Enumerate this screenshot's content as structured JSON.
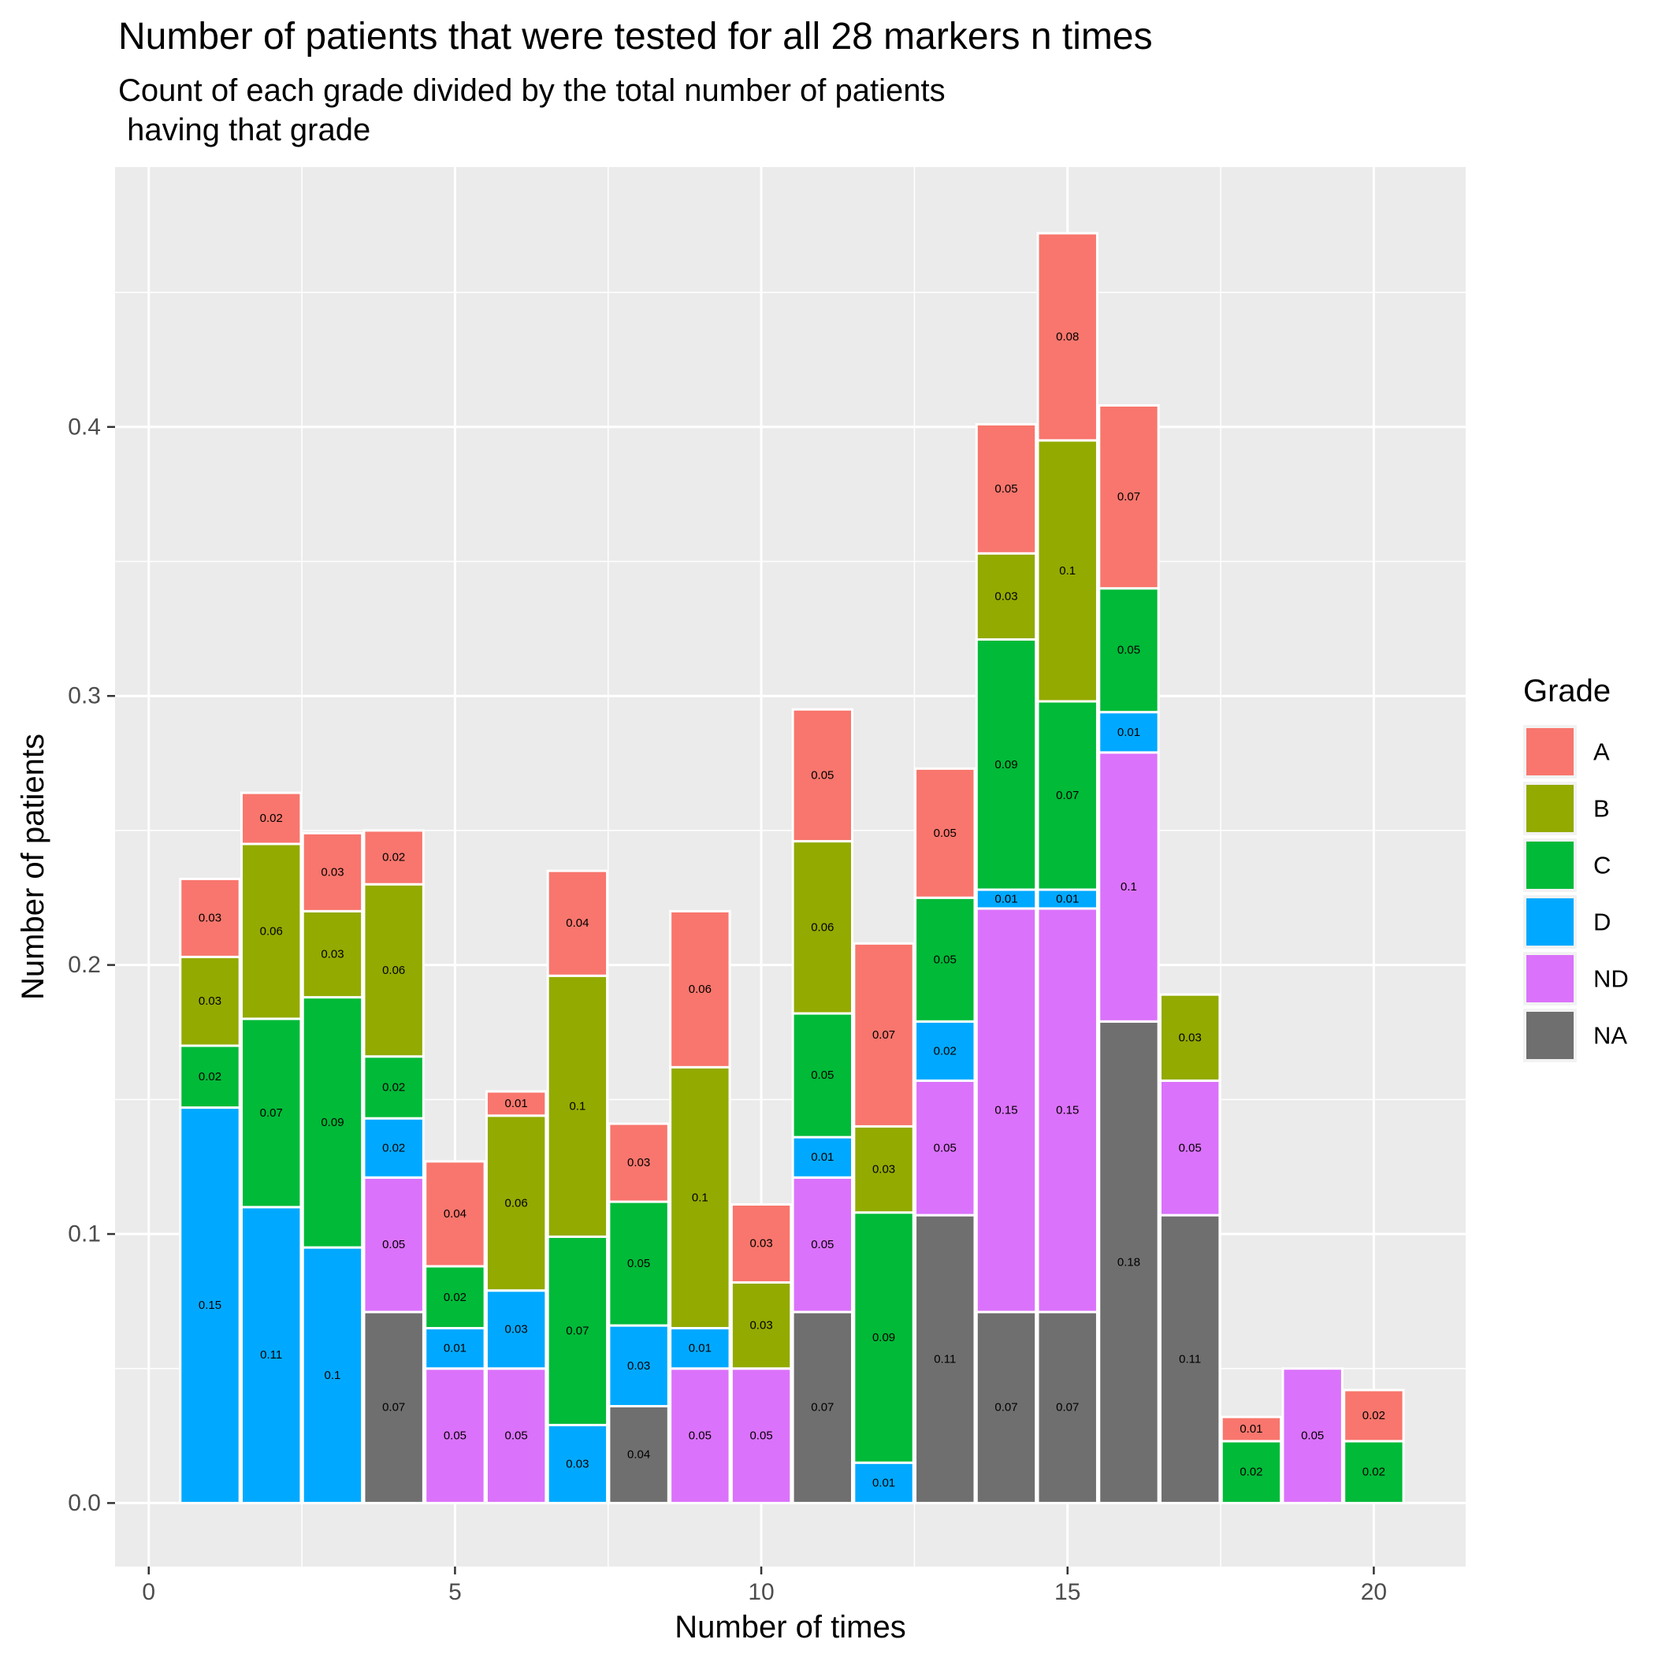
{
  "chart_data": {
    "type": "bar",
    "stacked": true,
    "title": "Number of patients that were tested for all 28 markers n times",
    "subtitle_lines": [
      "Count of each grade divided by the total number of patients",
      " having that grade"
    ],
    "xlabel": "Number of times",
    "ylabel": "Number of patients",
    "xlim": [
      -0.55,
      21.5
    ],
    "ylim": [
      -0.0236,
      0.4966
    ],
    "x_ticks": [
      0,
      5,
      10,
      15,
      20
    ],
    "x_tick_labels": [
      "0",
      "5",
      "10",
      "15",
      "20"
    ],
    "y_ticks": [
      0.0,
      0.1,
      0.2,
      0.3,
      0.4
    ],
    "y_tick_labels": [
      "0.0",
      "0.1",
      "0.2",
      "0.3",
      "0.4"
    ],
    "grid": true,
    "legend_position": "right",
    "legend_title": "Grade",
    "stack_order_bottom_to_top": [
      "NA",
      "ND",
      "D",
      "C",
      "B",
      "A"
    ],
    "series": [
      {
        "name": "A",
        "color": "#F8766D",
        "values": [
          {
            "x": 1,
            "y": 0.029,
            "label": "0.03"
          },
          {
            "x": 2,
            "y": 0.019,
            "label": "0.02"
          },
          {
            "x": 3,
            "y": 0.029,
            "label": "0.03"
          },
          {
            "x": 4,
            "y": 0.02,
            "label": "0.02"
          },
          {
            "x": 5,
            "y": 0.039,
            "label": "0.04"
          },
          {
            "x": 6,
            "y": 0.009,
            "label": "0.01"
          },
          {
            "x": 7,
            "y": 0.039,
            "label": "0.04"
          },
          {
            "x": 8,
            "y": 0.029,
            "label": "0.03"
          },
          {
            "x": 9,
            "y": 0.058,
            "label": "0.06"
          },
          {
            "x": 10,
            "y": 0.029,
            "label": "0.03"
          },
          {
            "x": 11,
            "y": 0.049,
            "label": "0.05"
          },
          {
            "x": 12,
            "y": 0.068,
            "label": "0.07"
          },
          {
            "x": 13,
            "y": 0.048,
            "label": "0.05"
          },
          {
            "x": 14,
            "y": 0.048,
            "label": "0.05"
          },
          {
            "x": 15,
            "y": 0.077,
            "label": "0.08"
          },
          {
            "x": 16,
            "y": 0.068,
            "label": "0.07"
          },
          {
            "x": 18,
            "y": 0.009,
            "label": "0.01"
          },
          {
            "x": 20,
            "y": 0.019,
            "label": "0.02"
          }
        ]
      },
      {
        "name": "B",
        "color": "#93AA00",
        "values": [
          {
            "x": 1,
            "y": 0.033,
            "label": "0.03"
          },
          {
            "x": 2,
            "y": 0.065,
            "label": "0.06"
          },
          {
            "x": 3,
            "y": 0.032,
            "label": "0.03"
          },
          {
            "x": 4,
            "y": 0.064,
            "label": "0.06"
          },
          {
            "x": 6,
            "y": 0.065,
            "label": "0.06"
          },
          {
            "x": 7,
            "y": 0.097,
            "label": "0.1"
          },
          {
            "x": 9,
            "y": 0.097,
            "label": "0.1"
          },
          {
            "x": 10,
            "y": 0.032,
            "label": "0.03"
          },
          {
            "x": 11,
            "y": 0.064,
            "label": "0.06"
          },
          {
            "x": 12,
            "y": 0.032,
            "label": "0.03"
          },
          {
            "x": 14,
            "y": 0.032,
            "label": "0.03"
          },
          {
            "x": 15,
            "y": 0.097,
            "label": "0.1"
          },
          {
            "x": 17,
            "y": 0.032,
            "label": "0.03"
          }
        ]
      },
      {
        "name": "C",
        "color": "#00BA38",
        "values": [
          {
            "x": 1,
            "y": 0.023,
            "label": "0.02"
          },
          {
            "x": 2,
            "y": 0.07,
            "label": "0.07"
          },
          {
            "x": 3,
            "y": 0.093,
            "label": "0.09"
          },
          {
            "x": 4,
            "y": 0.023,
            "label": "0.02"
          },
          {
            "x": 5,
            "y": 0.023,
            "label": "0.02"
          },
          {
            "x": 7,
            "y": 0.07,
            "label": "0.07"
          },
          {
            "x": 8,
            "y": 0.046,
            "label": "0.05"
          },
          {
            "x": 11,
            "y": 0.046,
            "label": "0.05"
          },
          {
            "x": 12,
            "y": 0.093,
            "label": "0.09"
          },
          {
            "x": 13,
            "y": 0.046,
            "label": "0.05"
          },
          {
            "x": 14,
            "y": 0.093,
            "label": "0.09"
          },
          {
            "x": 15,
            "y": 0.07,
            "label": "0.07"
          },
          {
            "x": 16,
            "y": 0.046,
            "label": "0.05"
          },
          {
            "x": 18,
            "y": 0.023,
            "label": "0.02"
          },
          {
            "x": 20,
            "y": 0.023,
            "label": "0.02"
          }
        ]
      },
      {
        "name": "D",
        "color": "#00A9FF",
        "values": [
          {
            "x": 1,
            "y": 0.147,
            "label": "0.15"
          },
          {
            "x": 2,
            "y": 0.11,
            "label": "0.11"
          },
          {
            "x": 3,
            "y": 0.095,
            "label": "0.1"
          },
          {
            "x": 4,
            "y": 0.022,
            "label": "0.02"
          },
          {
            "x": 5,
            "y": 0.015,
            "label": "0.01"
          },
          {
            "x": 6,
            "y": 0.029,
            "label": "0.03"
          },
          {
            "x": 7,
            "y": 0.029,
            "label": "0.03"
          },
          {
            "x": 8,
            "y": 0.03,
            "label": "0.03"
          },
          {
            "x": 9,
            "y": 0.015,
            "label": "0.01"
          },
          {
            "x": 11,
            "y": 0.015,
            "label": "0.01"
          },
          {
            "x": 12,
            "y": 0.015,
            "label": "0.01"
          },
          {
            "x": 13,
            "y": 0.022,
            "label": "0.02"
          },
          {
            "x": 14,
            "y": 0.007,
            "label": "0.01"
          },
          {
            "x": 15,
            "y": 0.007,
            "label": "0.01"
          },
          {
            "x": 16,
            "y": 0.015,
            "label": "0.01"
          }
        ]
      },
      {
        "name": "ND",
        "color": "#DB72FB",
        "values": [
          {
            "x": 4,
            "y": 0.05,
            "label": "0.05"
          },
          {
            "x": 5,
            "y": 0.05,
            "label": "0.05"
          },
          {
            "x": 6,
            "y": 0.05,
            "label": "0.05"
          },
          {
            "x": 9,
            "y": 0.05,
            "label": "0.05"
          },
          {
            "x": 10,
            "y": 0.05,
            "label": "0.05"
          },
          {
            "x": 11,
            "y": 0.05,
            "label": "0.05"
          },
          {
            "x": 13,
            "y": 0.05,
            "label": "0.05"
          },
          {
            "x": 14,
            "y": 0.15,
            "label": "0.15"
          },
          {
            "x": 15,
            "y": 0.15,
            "label": "0.15"
          },
          {
            "x": 16,
            "y": 0.1,
            "label": "0.1"
          },
          {
            "x": 17,
            "y": 0.05,
            "label": "0.05"
          },
          {
            "x": 19,
            "y": 0.05,
            "label": "0.05"
          }
        ]
      },
      {
        "name": "NA",
        "color": "#6F6F6F",
        "values": [
          {
            "x": 4,
            "y": 0.071,
            "label": "0.07"
          },
          {
            "x": 8,
            "y": 0.036,
            "label": "0.04"
          },
          {
            "x": 11,
            "y": 0.071,
            "label": "0.07"
          },
          {
            "x": 13,
            "y": 0.107,
            "label": "0.11"
          },
          {
            "x": 14,
            "y": 0.071,
            "label": "0.07"
          },
          {
            "x": 15,
            "y": 0.071,
            "label": "0.07"
          },
          {
            "x": 16,
            "y": 0.179,
            "label": "0.18"
          },
          {
            "x": 17,
            "y": 0.107,
            "label": "0.11"
          }
        ]
      }
    ]
  }
}
